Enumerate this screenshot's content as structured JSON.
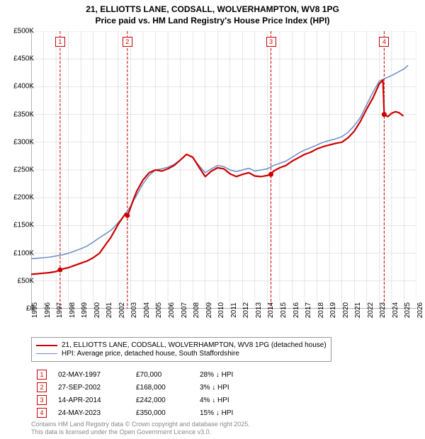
{
  "title_line1": "21, ELLIOTTS LANE, CODSALL, WOLVERHAMPTON, WV8 1PG",
  "title_line2": "Price paid vs. HM Land Registry's House Price Index (HPI)",
  "chart": {
    "type": "line",
    "background_color": "#ffffff",
    "grid_color": "#cccccc",
    "axis_color": "#666666",
    "xlim": [
      1995,
      2026
    ],
    "ylim": [
      0,
      500000
    ],
    "yticks": [
      0,
      50000,
      100000,
      150000,
      200000,
      250000,
      300000,
      350000,
      400000,
      450000,
      500000
    ],
    "ytick_labels": [
      "£0",
      "£50K",
      "£100K",
      "£150K",
      "£200K",
      "£250K",
      "£300K",
      "£350K",
      "£400K",
      "£450K",
      "£500K"
    ],
    "xticks": [
      1995,
      1996,
      1997,
      1998,
      1999,
      2000,
      2001,
      2002,
      2003,
      2004,
      2005,
      2006,
      2007,
      2008,
      2009,
      2010,
      2011,
      2012,
      2013,
      2014,
      2015,
      2016,
      2017,
      2018,
      2019,
      2020,
      2021,
      2022,
      2023,
      2024,
      2025,
      2026
    ],
    "xtick_labels": [
      "1995",
      "1996",
      "1997",
      "1998",
      "1999",
      "2000",
      "2001",
      "2002",
      "2003",
      "2004",
      "2005",
      "2006",
      "2007",
      "2008",
      "2009",
      "2010",
      "2011",
      "2012",
      "2013",
      "2014",
      "2015",
      "2016",
      "2017",
      "2018",
      "2019",
      "2020",
      "2021",
      "2022",
      "2023",
      "2024",
      "2025",
      "2026"
    ],
    "label_fontsize": 10,
    "title_fontsize": 12,
    "marker_line_color": "#cc0000",
    "marker_line_dash": "4 2",
    "marker_dot_radius": 3.5,
    "marker_dot_color": "#cc0000",
    "chart_markers": [
      {
        "num": "1",
        "x": 1997.33,
        "dot_y": 70000
      },
      {
        "num": "2",
        "x": 2002.74,
        "dot_y": 168000
      },
      {
        "num": "3",
        "x": 2014.29,
        "dot_y": 242000
      },
      {
        "num": "4",
        "x": 2023.4,
        "dot_y": 350000
      }
    ],
    "series": [
      {
        "name": "price_paid",
        "label": "21, ELLIOTTS LANE, CODSALL, WOLVERHAMPTON, WV8 1PG (detached house)",
        "color": "#cc0000",
        "width": 2.2,
        "data": [
          [
            1995.0,
            62000
          ],
          [
            1995.5,
            63000
          ],
          [
            1996.0,
            64000
          ],
          [
            1996.5,
            65000
          ],
          [
            1997.0,
            67000
          ],
          [
            1997.33,
            70000
          ],
          [
            1997.6,
            72000
          ],
          [
            1998.0,
            74000
          ],
          [
            1998.5,
            78000
          ],
          [
            1999.0,
            82000
          ],
          [
            1999.5,
            86000
          ],
          [
            2000.0,
            92000
          ],
          [
            2000.5,
            100000
          ],
          [
            2001.0,
            116000
          ],
          [
            2001.4,
            128000
          ],
          [
            2001.7,
            140000
          ],
          [
            2002.0,
            152000
          ],
          [
            2002.3,
            162000
          ],
          [
            2002.6,
            172000
          ],
          [
            2002.74,
            168000
          ],
          [
            2002.9,
            176000
          ],
          [
            2003.2,
            195000
          ],
          [
            2003.5,
            212000
          ],
          [
            2004.0,
            232000
          ],
          [
            2004.5,
            245000
          ],
          [
            2005.0,
            250000
          ],
          [
            2005.5,
            248000
          ],
          [
            2006.0,
            252000
          ],
          [
            2006.5,
            258000
          ],
          [
            2007.0,
            268000
          ],
          [
            2007.5,
            278000
          ],
          [
            2008.0,
            273000
          ],
          [
            2008.5,
            255000
          ],
          [
            2009.0,
            238000
          ],
          [
            2009.5,
            248000
          ],
          [
            2010.0,
            254000
          ],
          [
            2010.5,
            252000
          ],
          [
            2011.0,
            243000
          ],
          [
            2011.5,
            238000
          ],
          [
            2012.0,
            242000
          ],
          [
            2012.5,
            245000
          ],
          [
            2013.0,
            239000
          ],
          [
            2013.5,
            238000
          ],
          [
            2014.0,
            240000
          ],
          [
            2014.29,
            242000
          ],
          [
            2014.5,
            248000
          ],
          [
            2015.0,
            254000
          ],
          [
            2015.5,
            258000
          ],
          [
            2016.0,
            266000
          ],
          [
            2016.5,
            272000
          ],
          [
            2017.0,
            278000
          ],
          [
            2017.5,
            282000
          ],
          [
            2018.0,
            288000
          ],
          [
            2018.5,
            292000
          ],
          [
            2019.0,
            295000
          ],
          [
            2019.5,
            298000
          ],
          [
            2020.0,
            300000
          ],
          [
            2020.5,
            308000
          ],
          [
            2021.0,
            320000
          ],
          [
            2021.5,
            338000
          ],
          [
            2022.0,
            360000
          ],
          [
            2022.5,
            380000
          ],
          [
            2023.0,
            405000
          ],
          [
            2023.3,
            412000
          ],
          [
            2023.4,
            350000
          ],
          [
            2023.7,
            346000
          ],
          [
            2024.0,
            352000
          ],
          [
            2024.3,
            355000
          ],
          [
            2024.6,
            353000
          ],
          [
            2024.9,
            348000
          ]
        ]
      },
      {
        "name": "hpi",
        "label": "HPI: Average price, detached house, South Staffordshire",
        "color": "#6b8dc7",
        "width": 1.5,
        "data": [
          [
            1995.0,
            90000
          ],
          [
            1995.5,
            91000
          ],
          [
            1996.0,
            92000
          ],
          [
            1996.5,
            93000
          ],
          [
            1997.0,
            95000
          ],
          [
            1997.5,
            97000
          ],
          [
            1998.0,
            100000
          ],
          [
            1998.5,
            104000
          ],
          [
            1999.0,
            108000
          ],
          [
            1999.5,
            113000
          ],
          [
            2000.0,
            120000
          ],
          [
            2000.5,
            128000
          ],
          [
            2001.0,
            135000
          ],
          [
            2001.5,
            143000
          ],
          [
            2002.0,
            155000
          ],
          [
            2002.5,
            168000
          ],
          [
            2003.0,
            185000
          ],
          [
            2003.5,
            205000
          ],
          [
            2004.0,
            225000
          ],
          [
            2004.5,
            240000
          ],
          [
            2005.0,
            250000
          ],
          [
            2005.5,
            252000
          ],
          [
            2006.0,
            255000
          ],
          [
            2006.5,
            260000
          ],
          [
            2007.0,
            268000
          ],
          [
            2007.5,
            278000
          ],
          [
            2008.0,
            272000
          ],
          [
            2008.5,
            258000
          ],
          [
            2009.0,
            245000
          ],
          [
            2009.5,
            252000
          ],
          [
            2010.0,
            258000
          ],
          [
            2010.5,
            256000
          ],
          [
            2011.0,
            250000
          ],
          [
            2011.5,
            247000
          ],
          [
            2012.0,
            250000
          ],
          [
            2012.5,
            253000
          ],
          [
            2013.0,
            248000
          ],
          [
            2013.5,
            250000
          ],
          [
            2014.0,
            252000
          ],
          [
            2014.5,
            258000
          ],
          [
            2015.0,
            262000
          ],
          [
            2015.5,
            266000
          ],
          [
            2016.0,
            273000
          ],
          [
            2016.5,
            280000
          ],
          [
            2017.0,
            286000
          ],
          [
            2017.5,
            290000
          ],
          [
            2018.0,
            295000
          ],
          [
            2018.5,
            300000
          ],
          [
            2019.0,
            303000
          ],
          [
            2019.5,
            306000
          ],
          [
            2020.0,
            310000
          ],
          [
            2020.5,
            318000
          ],
          [
            2021.0,
            330000
          ],
          [
            2021.5,
            345000
          ],
          [
            2022.0,
            368000
          ],
          [
            2022.5,
            390000
          ],
          [
            2023.0,
            410000
          ],
          [
            2023.5,
            415000
          ],
          [
            2024.0,
            420000
          ],
          [
            2024.5,
            426000
          ],
          [
            2025.0,
            432000
          ],
          [
            2025.3,
            438000
          ]
        ]
      }
    ]
  },
  "legend": {
    "rows": [
      {
        "color": "#cc0000",
        "width": 2.2,
        "label": "21, ELLIOTTS LANE, CODSALL, WOLVERHAMPTON, WV8 1PG (detached house)"
      },
      {
        "color": "#6b8dc7",
        "width": 1.5,
        "label": "HPI: Average price, detached house, South Staffordshire"
      }
    ]
  },
  "notes": {
    "rows": [
      {
        "num": "1",
        "date": "02-MAY-1997",
        "price": "£70,000",
        "pct": "28%",
        "arrow": "↓",
        "suffix": "HPI"
      },
      {
        "num": "2",
        "date": "27-SEP-2002",
        "price": "£168,000",
        "pct": "3%",
        "arrow": "↓",
        "suffix": "HPI"
      },
      {
        "num": "3",
        "date": "14-APR-2014",
        "price": "£242,000",
        "pct": "4%",
        "arrow": "↓",
        "suffix": "HPI"
      },
      {
        "num": "4",
        "date": "24-MAY-2023",
        "price": "£350,000",
        "pct": "15%",
        "arrow": "↓",
        "suffix": "HPI"
      }
    ]
  },
  "footer_line1": "Contains HM Land Registry data © Crown copyright and database right 2025.",
  "footer_line2": "This data is licensed under the Open Government Licence v3.0."
}
